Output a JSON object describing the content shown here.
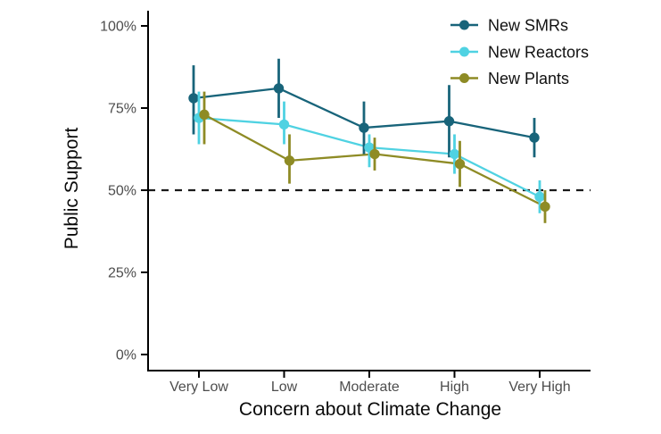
{
  "chart_data": {
    "type": "line",
    "variant": "dodged point-range (points with vertical CI error bars, connected by lines)",
    "title": "",
    "xlabel": "Concern about Climate Change",
    "ylabel": "Public Support",
    "categories": [
      "Very Low",
      "Low",
      "Moderate",
      "High",
      "Very High"
    ],
    "y_tick_labels": [
      "0%",
      "25%",
      "50%",
      "75%",
      "100%"
    ],
    "y_tick_values": [
      0,
      25,
      50,
      75,
      100
    ],
    "ylim": [
      0,
      100
    ],
    "grid": false,
    "background": "#ffffff",
    "axis_color": "#000000",
    "tick_label_color": "#4d4d4d",
    "reference_line": {
      "value": 50,
      "style": "dashed",
      "color": "#1a1a1a"
    },
    "legend_position": "top-right-inside",
    "series": [
      {
        "name": "New SMRs",
        "color": "#18647a",
        "values": [
          78,
          81,
          69,
          71,
          66
        ],
        "ci_low": [
          67,
          72,
          61,
          60,
          60
        ],
        "ci_high": [
          88,
          90,
          77,
          82,
          72
        ]
      },
      {
        "name": "New Reactors",
        "color": "#4fd2e2",
        "values": [
          72,
          70,
          63,
          61,
          48
        ],
        "ci_low": [
          64,
          64,
          57,
          55,
          43
        ],
        "ci_high": [
          80,
          77,
          67,
          67,
          53
        ]
      },
      {
        "name": "New Plants",
        "color": "#8e8b25",
        "values": [
          73,
          59,
          61,
          58,
          45
        ],
        "ci_low": [
          64,
          52,
          56,
          51,
          40
        ],
        "ci_high": [
          80,
          67,
          66,
          65,
          50
        ]
      }
    ]
  }
}
